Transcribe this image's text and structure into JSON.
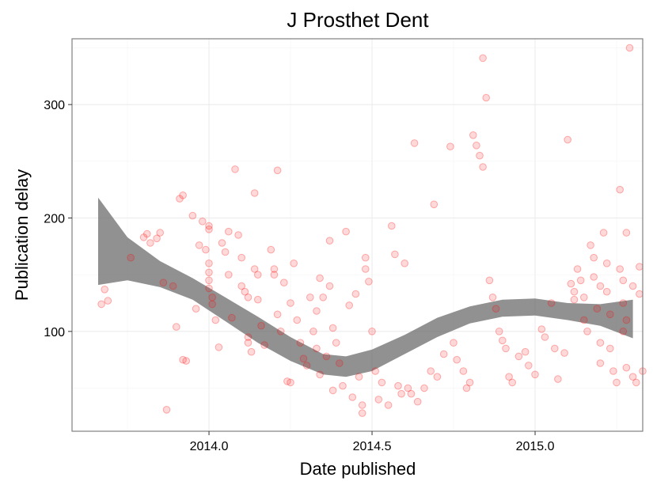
{
  "chart_data": {
    "type": "scatter",
    "title": "J Prosthet Dent",
    "xlabel": "Date published",
    "ylabel": "Publication delay",
    "xlim": [
      2013.58,
      2015.33
    ],
    "ylim": [
      12,
      358
    ],
    "x_ticks": [
      2014.0,
      2014.5,
      2015.0
    ],
    "x_tick_labels": [
      "2014.0",
      "2014.5",
      "2015.0"
    ],
    "y_ticks": [
      100,
      200,
      300
    ],
    "y_tick_labels": [
      "100",
      "200",
      "300"
    ],
    "grid": true,
    "point_color": "#ff0000",
    "band_color": "#666666",
    "smooth_band": {
      "x": [
        2013.66,
        2013.75,
        2013.85,
        2013.95,
        2014.05,
        2014.15,
        2014.25,
        2014.35,
        2014.42,
        2014.5,
        2014.6,
        2014.7,
        2014.8,
        2014.9,
        2015.0,
        2015.1,
        2015.2,
        2015.3
      ],
      "upper": [
        218,
        183,
        162,
        147,
        130,
        113,
        95,
        80,
        78,
        84,
        97,
        112,
        122,
        128,
        129,
        125,
        124,
        128
      ],
      "lower": [
        141,
        145,
        139,
        128,
        109,
        90,
        74,
        62,
        60,
        65,
        80,
        95,
        107,
        113,
        114,
        110,
        105,
        94
      ]
    },
    "points": [
      [
        2013.67,
        124
      ],
      [
        2013.68,
        137
      ],
      [
        2013.69,
        127
      ],
      [
        2013.76,
        165
      ],
      [
        2013.8,
        183
      ],
      [
        2013.81,
        186
      ],
      [
        2013.82,
        178
      ],
      [
        2013.84,
        182
      ],
      [
        2013.85,
        187
      ],
      [
        2013.86,
        143
      ],
      [
        2013.87,
        31
      ],
      [
        2013.89,
        140
      ],
      [
        2013.9,
        104
      ],
      [
        2013.91,
        217
      ],
      [
        2013.92,
        220
      ],
      [
        2013.92,
        75
      ],
      [
        2013.93,
        74
      ],
      [
        2013.95,
        202
      ],
      [
        2013.96,
        120
      ],
      [
        2013.97,
        176
      ],
      [
        2013.98,
        197
      ],
      [
        2013.99,
        172
      ],
      [
        2014.0,
        138
      ],
      [
        2014.0,
        193
      ],
      [
        2014.0,
        190
      ],
      [
        2014.0,
        160
      ],
      [
        2014.0,
        152
      ],
      [
        2014.0,
        145
      ],
      [
        2014.01,
        130
      ],
      [
        2014.01,
        124
      ],
      [
        2014.02,
        110
      ],
      [
        2014.03,
        86
      ],
      [
        2014.04,
        178
      ],
      [
        2014.05,
        170
      ],
      [
        2014.06,
        188
      ],
      [
        2014.06,
        150
      ],
      [
        2014.07,
        112
      ],
      [
        2014.08,
        243
      ],
      [
        2014.09,
        185
      ],
      [
        2014.1,
        165
      ],
      [
        2014.1,
        140
      ],
      [
        2014.11,
        135
      ],
      [
        2014.12,
        130
      ],
      [
        2014.12,
        95
      ],
      [
        2014.12,
        90
      ],
      [
        2014.13,
        82
      ],
      [
        2014.14,
        222
      ],
      [
        2014.14,
        155
      ],
      [
        2014.15,
        150
      ],
      [
        2014.15,
        128
      ],
      [
        2014.16,
        105
      ],
      [
        2014.17,
        88
      ],
      [
        2014.19,
        172
      ],
      [
        2014.2,
        155
      ],
      [
        2014.2,
        150
      ],
      [
        2014.21,
        242
      ],
      [
        2014.21,
        115
      ],
      [
        2014.22,
        100
      ],
      [
        2014.23,
        143
      ],
      [
        2014.24,
        56
      ],
      [
        2014.25,
        55
      ],
      [
        2014.25,
        125
      ],
      [
        2014.26,
        160
      ],
      [
        2014.27,
        110
      ],
      [
        2014.28,
        90
      ],
      [
        2014.29,
        76
      ],
      [
        2014.3,
        70
      ],
      [
        2014.31,
        130
      ],
      [
        2014.32,
        100
      ],
      [
        2014.33,
        85
      ],
      [
        2014.33,
        118
      ],
      [
        2014.34,
        147
      ],
      [
        2014.34,
        62
      ],
      [
        2014.35,
        130
      ],
      [
        2014.36,
        78
      ],
      [
        2014.37,
        180
      ],
      [
        2014.37,
        140
      ],
      [
        2014.38,
        48
      ],
      [
        2014.38,
        103
      ],
      [
        2014.39,
        90
      ],
      [
        2014.4,
        72
      ],
      [
        2014.41,
        52
      ],
      [
        2014.42,
        188
      ],
      [
        2014.43,
        123
      ],
      [
        2014.44,
        42
      ],
      [
        2014.45,
        133
      ],
      [
        2014.46,
        60
      ],
      [
        2014.47,
        35
      ],
      [
        2014.47,
        28
      ],
      [
        2014.48,
        165
      ],
      [
        2014.48,
        155
      ],
      [
        2014.49,
        144
      ],
      [
        2014.5,
        100
      ],
      [
        2014.51,
        65
      ],
      [
        2014.52,
        40
      ],
      [
        2014.53,
        55
      ],
      [
        2014.55,
        35
      ],
      [
        2014.56,
        193
      ],
      [
        2014.57,
        168
      ],
      [
        2014.58,
        52
      ],
      [
        2014.59,
        45
      ],
      [
        2014.6,
        160
      ],
      [
        2014.61,
        50
      ],
      [
        2014.62,
        45
      ],
      [
        2014.63,
        266
      ],
      [
        2014.64,
        38
      ],
      [
        2014.66,
        50
      ],
      [
        2014.68,
        65
      ],
      [
        2014.69,
        212
      ],
      [
        2014.7,
        60
      ],
      [
        2014.72,
        80
      ],
      [
        2014.74,
        263
      ],
      [
        2014.75,
        90
      ],
      [
        2014.76,
        75
      ],
      [
        2014.78,
        65
      ],
      [
        2014.79,
        50
      ],
      [
        2014.8,
        55
      ],
      [
        2014.81,
        273
      ],
      [
        2014.82,
        264
      ],
      [
        2014.83,
        255
      ],
      [
        2014.84,
        245
      ],
      [
        2014.84,
        341
      ],
      [
        2014.85,
        306
      ],
      [
        2014.86,
        145
      ],
      [
        2014.87,
        130
      ],
      [
        2014.88,
        120
      ],
      [
        2014.89,
        100
      ],
      [
        2014.9,
        92
      ],
      [
        2014.91,
        85
      ],
      [
        2014.92,
        60
      ],
      [
        2014.93,
        55
      ],
      [
        2014.95,
        78
      ],
      [
        2014.97,
        82
      ],
      [
        2014.98,
        70
      ],
      [
        2015.0,
        62
      ],
      [
        2015.02,
        102
      ],
      [
        2015.03,
        95
      ],
      [
        2015.05,
        125
      ],
      [
        2015.06,
        85
      ],
      [
        2015.07,
        58
      ],
      [
        2015.09,
        81
      ],
      [
        2015.1,
        269
      ],
      [
        2015.11,
        142
      ],
      [
        2015.12,
        135
      ],
      [
        2015.12,
        128
      ],
      [
        2015.13,
        155
      ],
      [
        2015.14,
        145
      ],
      [
        2015.15,
        130
      ],
      [
        2015.15,
        110
      ],
      [
        2015.16,
        100
      ],
      [
        2015.17,
        176
      ],
      [
        2015.18,
        165
      ],
      [
        2015.18,
        148
      ],
      [
        2015.19,
        120
      ],
      [
        2015.2,
        140
      ],
      [
        2015.2,
        90
      ],
      [
        2015.2,
        72
      ],
      [
        2015.21,
        187
      ],
      [
        2015.22,
        160
      ],
      [
        2015.22,
        135
      ],
      [
        2015.23,
        115
      ],
      [
        2015.23,
        85
      ],
      [
        2015.24,
        65
      ],
      [
        2015.25,
        55
      ],
      [
        2015.26,
        225
      ],
      [
        2015.26,
        155
      ],
      [
        2015.27,
        145
      ],
      [
        2015.27,
        125
      ],
      [
        2015.27,
        100
      ],
      [
        2015.28,
        187
      ],
      [
        2015.28,
        110
      ],
      [
        2015.28,
        68
      ],
      [
        2015.29,
        350
      ],
      [
        2015.3,
        140
      ],
      [
        2015.3,
        60
      ],
      [
        2015.31,
        55
      ],
      [
        2015.32,
        157
      ],
      [
        2015.32,
        133
      ],
      [
        2015.33,
        65
      ]
    ]
  }
}
